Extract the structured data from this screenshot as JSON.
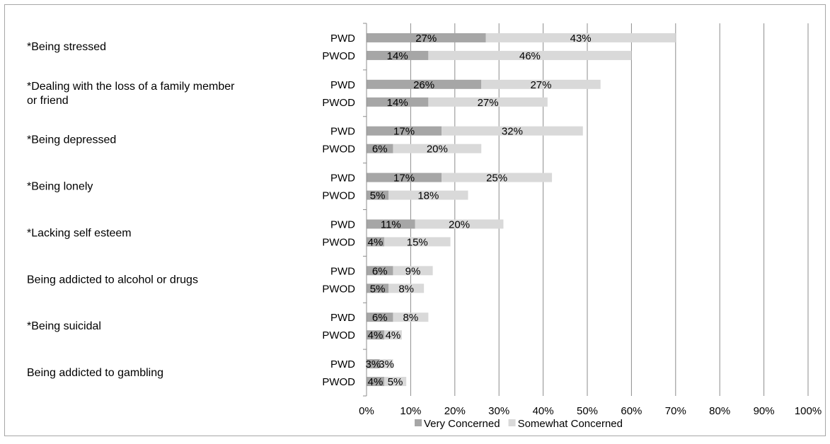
{
  "chart_data": {
    "type": "bar",
    "orientation": "horizontal",
    "stacked": true,
    "title": "",
    "xlabel": "",
    "ylabel": "",
    "xlim": [
      0,
      100
    ],
    "x_ticks": [
      "0%",
      "10%",
      "20%",
      "30%",
      "40%",
      "50%",
      "60%",
      "70%",
      "80%",
      "90%",
      "100%"
    ],
    "grid": "vertical",
    "legend_position": "bottom",
    "groups": [
      {
        "label": "*Being stressed",
        "label_lines": [
          "*Being stressed"
        ],
        "rows": [
          {
            "label": "PWD",
            "values": [
              27,
              43
            ]
          },
          {
            "label": "PWOD",
            "values": [
              14,
              46
            ]
          }
        ]
      },
      {
        "label": "*Dealing with the loss of a family member or friend",
        "label_lines": [
          "*Dealing with the loss of a family member",
          "or friend"
        ],
        "rows": [
          {
            "label": "PWD",
            "values": [
              26,
              27
            ]
          },
          {
            "label": "PWOD",
            "values": [
              14,
              27
            ]
          }
        ]
      },
      {
        "label": "*Being depressed",
        "label_lines": [
          "*Being depressed"
        ],
        "rows": [
          {
            "label": "PWD",
            "values": [
              17,
              32
            ]
          },
          {
            "label": "PWOD",
            "values": [
              6,
              20
            ]
          }
        ]
      },
      {
        "label": "*Being lonely",
        "label_lines": [
          "*Being lonely"
        ],
        "rows": [
          {
            "label": "PWD",
            "values": [
              17,
              25
            ]
          },
          {
            "label": "PWOD",
            "values": [
              5,
              18
            ]
          }
        ]
      },
      {
        "label": "*Lacking self esteem",
        "label_lines": [
          "*Lacking self esteem"
        ],
        "rows": [
          {
            "label": "PWD",
            "values": [
              11,
              20
            ]
          },
          {
            "label": "PWOD",
            "values": [
              4,
              15
            ]
          }
        ]
      },
      {
        "label": "Being addicted to alcohol or drugs",
        "label_lines": [
          "Being addicted to alcohol or drugs"
        ],
        "rows": [
          {
            "label": "PWD",
            "values": [
              6,
              9
            ]
          },
          {
            "label": "PWOD",
            "values": [
              5,
              8
            ]
          }
        ]
      },
      {
        "label": "*Being suicidal",
        "label_lines": [
          "*Being suicidal"
        ],
        "rows": [
          {
            "label": "PWD",
            "values": [
              6,
              8
            ]
          },
          {
            "label": "PWOD",
            "values": [
              4,
              4
            ]
          }
        ]
      },
      {
        "label": "Being addicted to gambling",
        "label_lines": [
          "Being addicted to gambling"
        ],
        "rows": [
          {
            "label": "PWD",
            "values": [
              3,
              3
            ]
          },
          {
            "label": "PWOD",
            "values": [
              4,
              5
            ]
          }
        ]
      }
    ],
    "series": [
      {
        "name": "Very Concerned",
        "color": "#a6a6a6"
      },
      {
        "name": "Somewhat Concerned",
        "color": "#d9d9d9"
      }
    ],
    "data_label_suffix": "%"
  }
}
